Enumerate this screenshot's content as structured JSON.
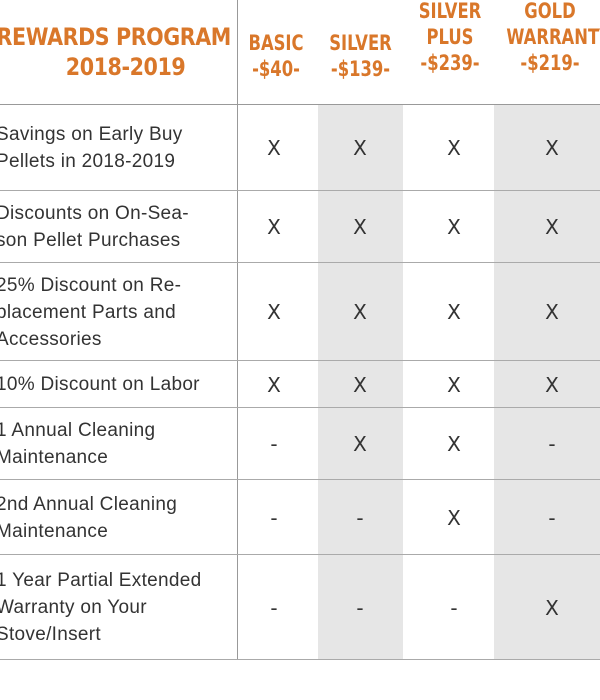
{
  "header": {
    "title_line1": "REWARDS PROGRAM",
    "title_line2": "2018-2019",
    "columns": [
      {
        "line1": "",
        "line2": "BASIC",
        "line3": "-$40-"
      },
      {
        "line1": "",
        "line2": "SILVER",
        "line3": "-$139-"
      },
      {
        "line1": "SILVER",
        "line2": "PLUS",
        "line3": "-$239-"
      },
      {
        "line1": "GOLD",
        "line2": "WARRANTY",
        "line3": "-$219-"
      }
    ]
  },
  "rows": [
    {
      "label": "Savings on Early Buy\nPellets in 2018-2019",
      "marks": [
        "X",
        "X",
        "X",
        "X"
      ]
    },
    {
      "label": "Discounts on On-Sea-\nson Pellet Purchases",
      "marks": [
        "X",
        "X",
        "X",
        "X"
      ]
    },
    {
      "label": "25% Discount on Re-\nplacement Parts and\nAccessories",
      "marks": [
        "X",
        "X",
        "X",
        "X"
      ]
    },
    {
      "label": "10% Discount on Labor",
      "marks": [
        "X",
        "X",
        "X",
        "X"
      ]
    },
    {
      "label": "1 Annual Cleaning\nMaintenance",
      "marks": [
        "-",
        "X",
        "X",
        "-"
      ]
    },
    {
      "label": "2nd Annual Cleaning\nMaintenance",
      "marks": [
        "-",
        "-",
        "X",
        "-"
      ]
    },
    {
      "label": "1 Year Partial Extended\nWarranty on Your\nStove/Insert",
      "marks": [
        "-",
        "-",
        "-",
        "X"
      ]
    }
  ],
  "colors": {
    "accent": "#d9772a",
    "shade": "#e6e6e6",
    "text": "#333333"
  }
}
